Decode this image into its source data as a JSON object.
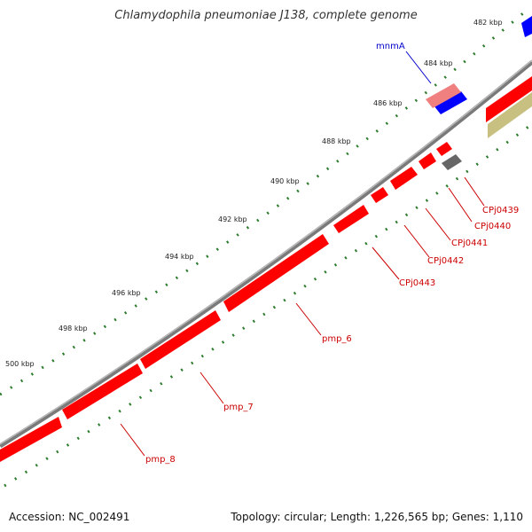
{
  "title": "Chlamydophila pneumoniae J138, complete genome",
  "footer": {
    "accession": "Accession: NC_002491",
    "summary": "Topology: circular; Length: 1,226,565 bp; Genes: 1,110"
  },
  "tick_labels": [
    "482 kbp",
    "484 kbp",
    "486 kbp",
    "488 kbp",
    "490 kbp",
    "492 kbp",
    "494 kbp",
    "496 kbp",
    "498 kbp",
    "500 kbp"
  ],
  "gene_labels": [
    "mnmA",
    "CPj0439",
    "CPj0440",
    "CPj0441",
    "CPj0442",
    "CPj0443",
    "pmp_6",
    "pmp_7",
    "pmp_8"
  ],
  "colors": {
    "backbone": "#8a8a8a",
    "tick": "#2e7d2e",
    "forward_gene": "#ff0000",
    "reverse_gene": "#ff0000",
    "mnmA": "#0000ff",
    "mnmA_label": "#0000cc",
    "highlight_pink": "#f08080",
    "gray_gene": "#666666",
    "olive_gene": "#c8c080",
    "label_red": "#cc0000"
  }
}
